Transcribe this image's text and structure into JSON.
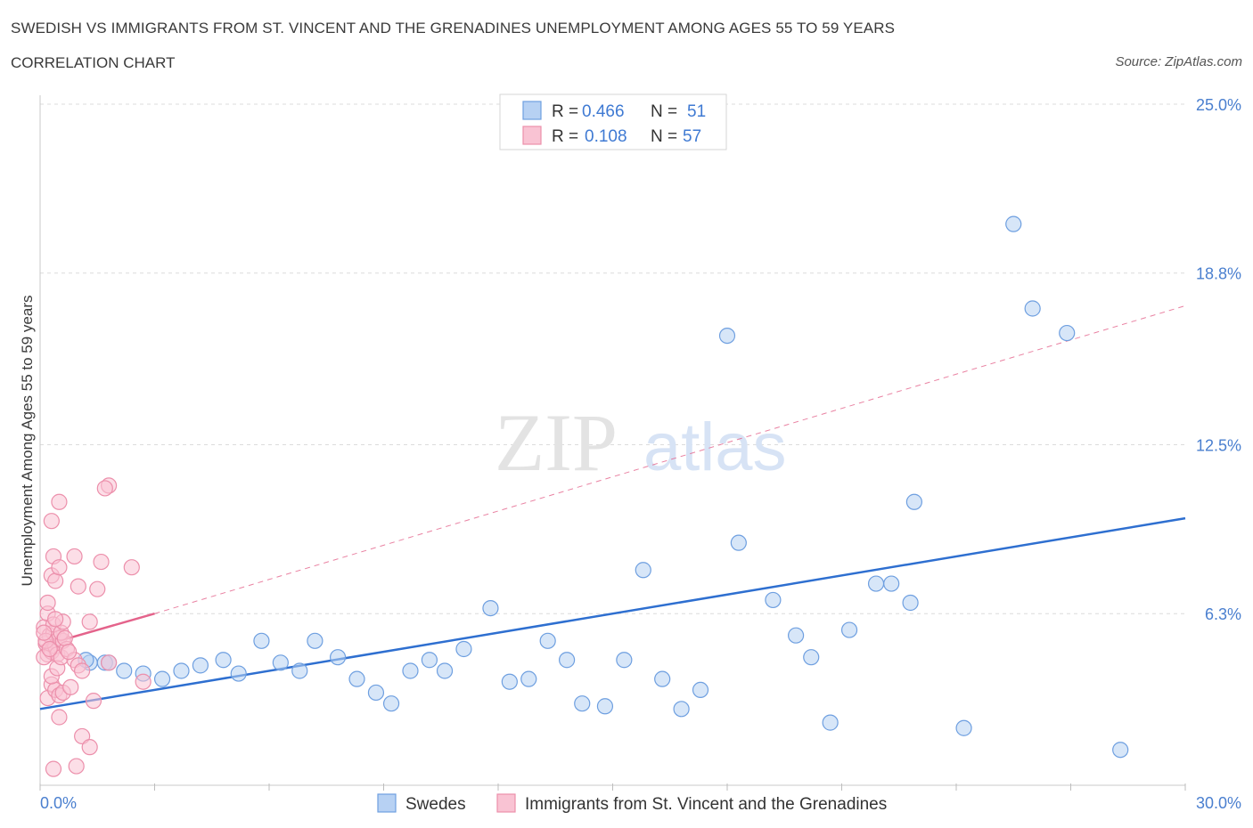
{
  "header": {
    "title": "SWEDISH VS IMMIGRANTS FROM ST. VINCENT AND THE GRENADINES UNEMPLOYMENT AMONG AGES 55 TO 59 YEARS",
    "subtitle": "CORRELATION CHART",
    "source": "Source: ZipAtlas.com"
  },
  "watermark": {
    "zip": "ZIP",
    "atlas": "atlas"
  },
  "colors": {
    "swedes_fill": "#b7d1f3",
    "swedes_stroke": "#6e9fe0",
    "swedes_line": "#2e6fd0",
    "svg_fill": "#f9c3d3",
    "svg_stroke": "#ec8fab",
    "svg_line": "#e4638b",
    "grid": "#dcdcdc",
    "axis_text": "#4a7fcf"
  },
  "legend_box": {
    "r_label": "R =",
    "n_label": "N =",
    "rows": [
      {
        "r": "0.466",
        "n": "51",
        "series": "swedes"
      },
      {
        "r": "0.108",
        "n": "57",
        "series": "svg"
      }
    ]
  },
  "chart_data": {
    "type": "scatter",
    "title": "SWEDISH VS IMMIGRANTS FROM ST. VINCENT AND THE GRENADINES UNEMPLOYMENT AMONG AGES 55 TO 59 YEARS",
    "xlabel": "",
    "ylabel": "Unemployment Among Ages 55 to 59 years",
    "xlim": [
      0,
      30
    ],
    "ylim": [
      0,
      25
    ],
    "x_tick_labels": [
      "0.0%",
      "30.0%"
    ],
    "y_ticks": [
      6.3,
      12.5,
      18.8,
      25.0
    ],
    "y_tick_labels": [
      "6.3%",
      "12.5%",
      "18.8%",
      "25.0%"
    ],
    "grid": true,
    "legend": "bottom-center",
    "series": [
      {
        "name": "Swedes",
        "key": "swedes",
        "R": 0.466,
        "N": 51,
        "trend": {
          "x0": 0,
          "y0": 2.8,
          "x1": 30,
          "y1": 9.8,
          "dashed_to": null
        },
        "points": [
          [
            1.3,
            4.5
          ],
          [
            1.7,
            4.5
          ],
          [
            2.2,
            4.2
          ],
          [
            2.7,
            4.1
          ],
          [
            3.2,
            3.9
          ],
          [
            3.7,
            4.2
          ],
          [
            4.2,
            4.4
          ],
          [
            4.8,
            4.6
          ],
          [
            5.2,
            4.1
          ],
          [
            5.8,
            5.3
          ],
          [
            6.3,
            4.5
          ],
          [
            6.8,
            4.2
          ],
          [
            7.2,
            5.3
          ],
          [
            7.8,
            4.7
          ],
          [
            8.3,
            3.9
          ],
          [
            8.8,
            3.4
          ],
          [
            9.2,
            3.0
          ],
          [
            9.7,
            4.2
          ],
          [
            10.2,
            4.6
          ],
          [
            10.6,
            4.2
          ],
          [
            11.1,
            5.0
          ],
          [
            11.8,
            6.5
          ],
          [
            12.3,
            3.8
          ],
          [
            12.8,
            3.9
          ],
          [
            13.3,
            5.3
          ],
          [
            13.8,
            4.6
          ],
          [
            14.2,
            3.0
          ],
          [
            14.8,
            2.9
          ],
          [
            15.3,
            4.6
          ],
          [
            15.8,
            7.9
          ],
          [
            16.3,
            3.9
          ],
          [
            16.8,
            2.8
          ],
          [
            17.3,
            3.5
          ],
          [
            18.0,
            16.5
          ],
          [
            18.3,
            8.9
          ],
          [
            19.2,
            6.8
          ],
          [
            19.8,
            5.5
          ],
          [
            20.2,
            4.7
          ],
          [
            20.7,
            2.3
          ],
          [
            21.2,
            5.7
          ],
          [
            21.9,
            7.4
          ],
          [
            22.3,
            7.4
          ],
          [
            22.8,
            6.7
          ],
          [
            22.9,
            10.4
          ],
          [
            24.2,
            2.1
          ],
          [
            25.5,
            20.6
          ],
          [
            26.0,
            17.5
          ],
          [
            26.9,
            16.6
          ],
          [
            28.3,
            1.3
          ],
          [
            1.8,
            4.5
          ],
          [
            1.2,
            4.6
          ]
        ]
      },
      {
        "name": "Immigrants from St. Vincent and the Grenadines",
        "key": "svg",
        "R": 0.108,
        "N": 57,
        "trend": {
          "x0": 0,
          "y0": 5.1,
          "x1": 3.0,
          "y1": 6.3,
          "dashed_to": {
            "x": 30,
            "y": 17.6
          }
        },
        "points": [
          [
            0.1,
            5.8
          ],
          [
            0.15,
            5.2
          ],
          [
            0.2,
            4.8
          ],
          [
            0.25,
            5.5
          ],
          [
            0.3,
            4.9
          ],
          [
            0.35,
            5.6
          ],
          [
            0.4,
            5.1
          ],
          [
            0.45,
            4.8
          ],
          [
            0.5,
            5.4
          ],
          [
            0.2,
            6.3
          ],
          [
            0.3,
            7.7
          ],
          [
            0.35,
            8.4
          ],
          [
            0.4,
            7.5
          ],
          [
            0.5,
            8.0
          ],
          [
            0.3,
            9.7
          ],
          [
            0.5,
            10.4
          ],
          [
            0.2,
            3.2
          ],
          [
            0.3,
            3.7
          ],
          [
            0.4,
            3.5
          ],
          [
            0.5,
            3.3
          ],
          [
            0.6,
            3.4
          ],
          [
            0.3,
            4.0
          ],
          [
            0.45,
            4.3
          ],
          [
            0.55,
            4.7
          ],
          [
            0.6,
            5.3
          ],
          [
            0.7,
            5.0
          ],
          [
            0.8,
            3.6
          ],
          [
            0.9,
            4.6
          ],
          [
            1.0,
            4.4
          ],
          [
            1.1,
            4.2
          ],
          [
            1.0,
            7.3
          ],
          [
            0.9,
            8.4
          ],
          [
            1.5,
            7.2
          ],
          [
            1.6,
            8.2
          ],
          [
            1.8,
            11.0
          ],
          [
            1.7,
            10.9
          ],
          [
            2.4,
            8.0
          ],
          [
            2.7,
            3.8
          ],
          [
            1.3,
            6.0
          ],
          [
            1.4,
            3.1
          ],
          [
            0.5,
            2.5
          ],
          [
            1.1,
            1.8
          ],
          [
            1.3,
            1.4
          ],
          [
            0.35,
            0.6
          ],
          [
            0.95,
            0.7
          ],
          [
            0.1,
            4.7
          ],
          [
            0.15,
            5.3
          ],
          [
            0.25,
            5.0
          ],
          [
            0.35,
            5.9
          ],
          [
            0.55,
            5.6
          ],
          [
            0.65,
            5.4
          ],
          [
            0.75,
            4.9
          ],
          [
            0.2,
            6.7
          ],
          [
            0.6,
            6.0
          ],
          [
            1.8,
            4.5
          ],
          [
            0.1,
            5.6
          ],
          [
            0.4,
            6.1
          ]
        ]
      }
    ]
  }
}
